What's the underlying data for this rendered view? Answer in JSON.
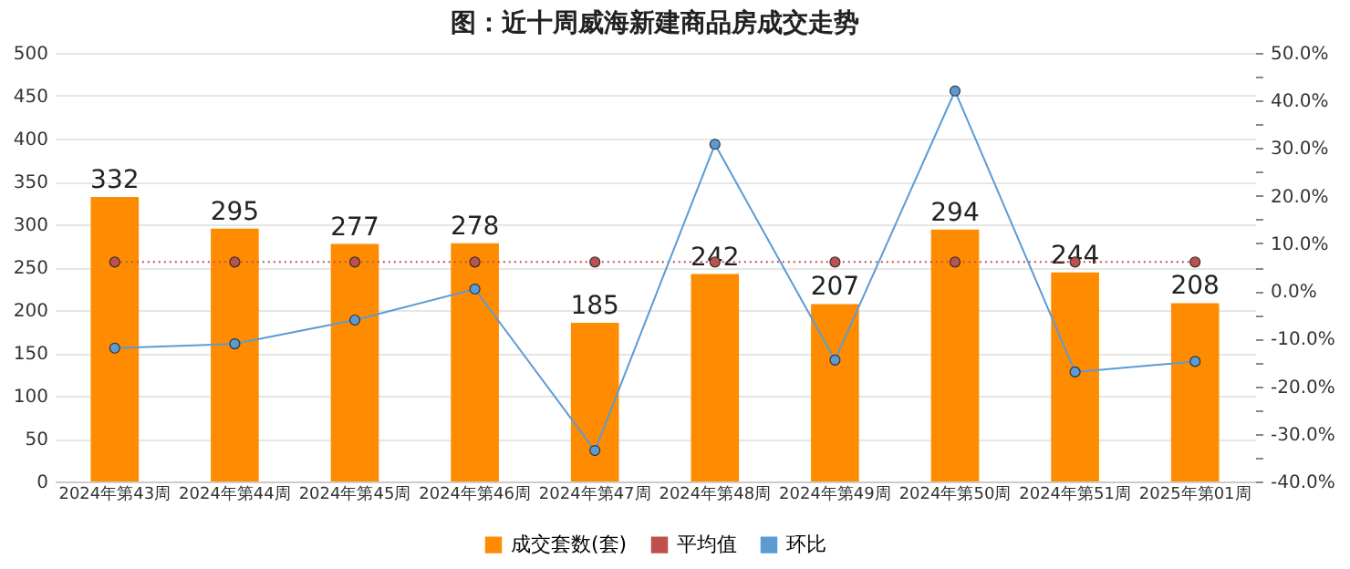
{
  "chart_data": {
    "type": "bar",
    "title": "图：近十周威海新建商品房成交走势",
    "categories": [
      "2024年第43周",
      "2024年第44周",
      "2024年第45周",
      "2024年第46周",
      "2024年第47周",
      "2024年第48周",
      "2024年第49周",
      "2024年第50周",
      "2024年第51周",
      "2025年第01周"
    ],
    "series": [
      {
        "name": "成交套数(套)",
        "color": "#ff8c00",
        "values": [
          332,
          295,
          277,
          278,
          185,
          242,
          207,
          294,
          244,
          208
        ],
        "value_labels": [
          "332",
          "295",
          "277",
          "278",
          "185",
          "242",
          "207",
          "294",
          "244",
          "208"
        ]
      },
      {
        "name": "平均值",
        "type": "line",
        "color": "#c0504d",
        "line_style": "dotted",
        "values": [
          256,
          256,
          256,
          256,
          256,
          256,
          256,
          256,
          256,
          256
        ]
      },
      {
        "name": "环比",
        "type": "line",
        "color": "#5b9bd5",
        "line_style": "solid",
        "axis": "y2",
        "values": [
          -12,
          -11.1,
          -6.1,
          0.4,
          -33.5,
          30.8,
          -14.5,
          42,
          -17,
          -14.8
        ]
      }
    ],
    "ylim": [
      0,
      500
    ],
    "yticks": [
      0,
      50,
      100,
      150,
      200,
      250,
      300,
      350,
      400,
      450,
      500
    ],
    "y2lim": [
      -40,
      50
    ],
    "y2ticks": [
      {
        "value": -40,
        "label": "-40.0%"
      },
      {
        "value": -35,
        "label": null
      },
      {
        "value": -30,
        "label": "-30.0%"
      },
      {
        "value": -25,
        "label": null
      },
      {
        "value": -20,
        "label": "-20.0%"
      },
      {
        "value": -15,
        "label": null
      },
      {
        "value": -10,
        "label": "-10.0%"
      },
      {
        "value": -5,
        "label": null
      },
      {
        "value": 0,
        "label": "0.0%"
      },
      {
        "value": 5,
        "label": null
      },
      {
        "value": 10,
        "label": "10.0%"
      },
      {
        "value": 15,
        "label": null
      },
      {
        "value": 20,
        "label": "20.0%"
      },
      {
        "value": 25,
        "label": null
      },
      {
        "value": 30,
        "label": "30.0%"
      },
      {
        "value": 35,
        "label": null
      },
      {
        "value": 40,
        "label": "40.0%"
      },
      {
        "value": 45,
        "label": null
      },
      {
        "value": 50,
        "label": "50.0%"
      }
    ],
    "grid": "y",
    "legend": "bottom",
    "marker": "circle"
  }
}
